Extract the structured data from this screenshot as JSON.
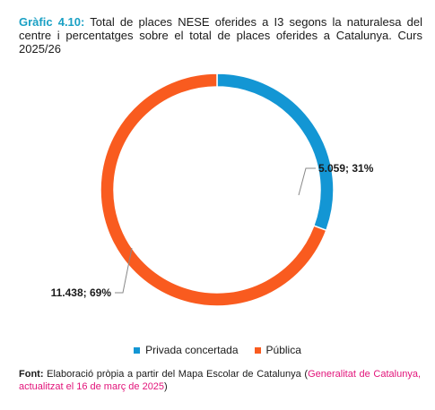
{
  "header": {
    "figure_label": "Gràfic 4.10:",
    "title_text": " Total de places NESE oferides a I3 segons la naturalesa del centre i percentatges sobre el total de places oferides a Catalunya. Curs 2025/26"
  },
  "chart_data": {
    "type": "pie",
    "variant": "donut",
    "slices": [
      {
        "name": "Privada concertada",
        "value": 5059,
        "percent": 31,
        "label": "5.059; 31%",
        "color": "#1396d4"
      },
      {
        "name": "Pública",
        "value": 11438,
        "percent": 69,
        "label": "11.438; 69%",
        "color": "#f95b1f"
      }
    ],
    "legend_position": "bottom"
  },
  "legend": {
    "items": [
      {
        "label": "Privada concertada",
        "color": "#1396d4"
      },
      {
        "label": "Pública",
        "color": "#f95b1f"
      }
    ]
  },
  "footer": {
    "source_label": "Font:",
    "source_text": " Elaboració pròpia a partir del Mapa Escolar de Catalunya (",
    "source_link": "Generalitat de Catalunya, actualitzat el 16 de març de 2025",
    "source_end": ")"
  }
}
